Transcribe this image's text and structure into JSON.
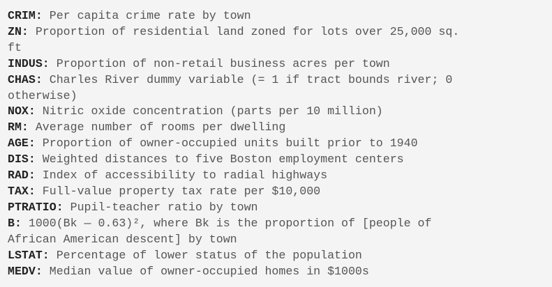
{
  "entries": [
    {
      "key": "CRIM",
      "desc": "Per capita crime rate by town"
    },
    {
      "key": "ZN",
      "desc": "Proportion of residential land zoned for lots over 25,000 sq."
    },
    {
      "key": "",
      "desc": "ft"
    },
    {
      "key": "INDUS",
      "desc": "Proportion of non-retail business acres per town"
    },
    {
      "key": "CHAS",
      "desc": "Charles River dummy variable (= 1 if tract bounds river; 0"
    },
    {
      "key": "",
      "desc": "otherwise)"
    },
    {
      "key": "NOX",
      "desc": "Nitric oxide concentration (parts per 10 million)"
    },
    {
      "key": "RM",
      "desc": "Average number of rooms per dwelling"
    },
    {
      "key": "AGE",
      "desc": "Proportion of owner-occupied units built prior to 1940"
    },
    {
      "key": "DIS",
      "desc": "Weighted distances to five Boston employment centers"
    },
    {
      "key": "RAD",
      "desc": "Index of accessibility to radial highways"
    },
    {
      "key": "TAX",
      "desc": "Full-value property tax rate per $10,000"
    },
    {
      "key": "PTRATIO",
      "desc": "Pupil-teacher ratio by town"
    },
    {
      "key": "B",
      "desc": "1000(Bk — 0.63)², where Bk is the proportion of [people of"
    },
    {
      "key": "",
      "desc": "African American descent] by town"
    },
    {
      "key": "LSTAT",
      "desc": "Percentage of lower status of the population"
    },
    {
      "key": "MEDV",
      "desc": "Median value of owner-occupied homes in $1000s"
    }
  ]
}
